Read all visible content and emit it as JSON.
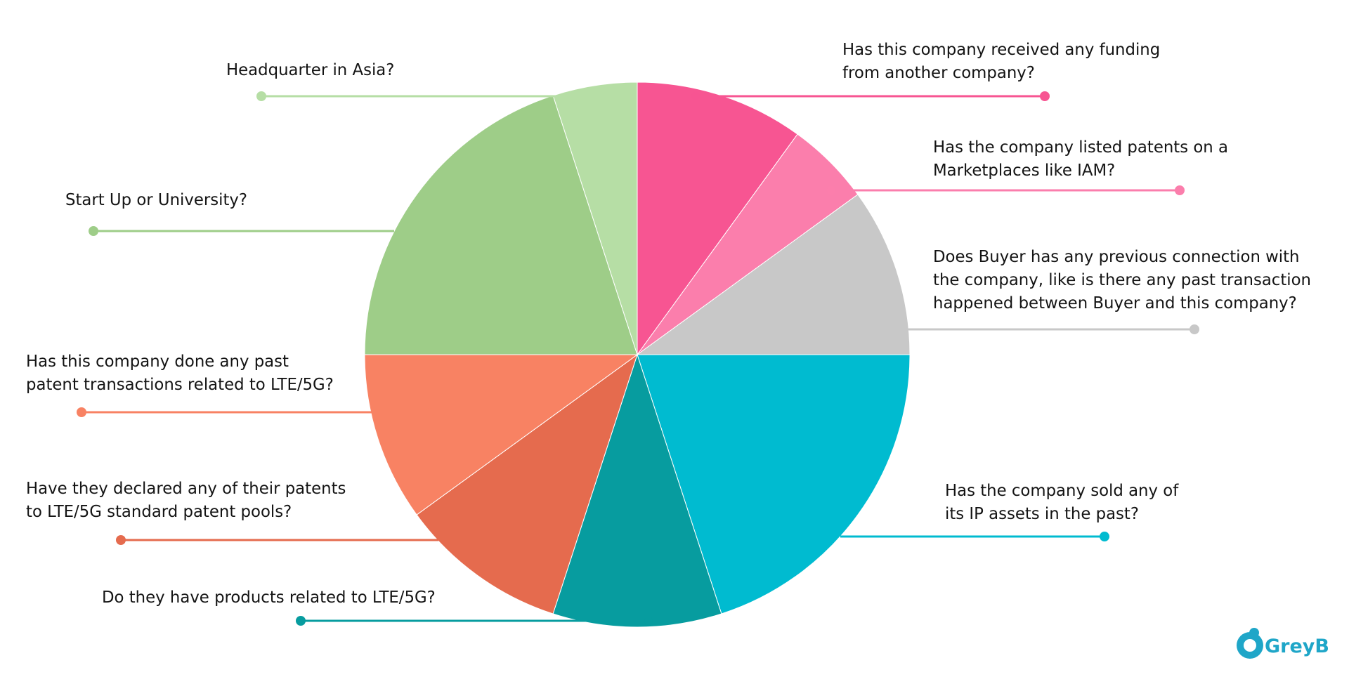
{
  "chart_data": {
    "type": "pie",
    "slices": [
      {
        "label": "Has this company received any funding from another company?",
        "label_lines": [
          "Has this company received any funding",
          "from another company?"
        ],
        "value": 10,
        "color": "#f75592",
        "side": "right"
      },
      {
        "label": "Has the company listed patents on a Marketplaces like IAM?",
        "label_lines": [
          "Has the company listed patents on a",
          "Marketplaces like IAM?"
        ],
        "value": 5,
        "color": "#fb7eac",
        "side": "right"
      },
      {
        "label": "Does Buyer has any previous connection with the company, like is there any past transaction happened between Buyer and this company?",
        "label_lines": [
          "Does Buyer has any previous connection with",
          "the company, like is there any past transaction",
          "happened between Buyer and this company?"
        ],
        "value": 10,
        "color": "#c8c8c8",
        "side": "right"
      },
      {
        "label": "Has the company sold any of its IP assets in the past?",
        "label_lines": [
          "Has the company sold any of",
          "its IP assets in the past?"
        ],
        "value": 20,
        "color": "#00bbd0",
        "side": "right"
      },
      {
        "label": "Do they have products related to LTE/5G?",
        "label_lines": [
          "Do they have products related to LTE/5G?"
        ],
        "value": 10,
        "color": "#079c9f",
        "side": "left"
      },
      {
        "label": "Have they declared any of their patents to LTE/5G standard patent pools?",
        "label_lines": [
          "Have they declared any of their patents",
          "to LTE/5G standard patent pools?"
        ],
        "value": 10,
        "color": "#e56b4e",
        "side": "left"
      },
      {
        "label": "Has this company done any past patent transactions related to LTE/5G?",
        "label_lines": [
          "Has this company done any past",
          "patent transactions related to LTE/5G?"
        ],
        "value": 10,
        "color": "#f88263",
        "side": "left"
      },
      {
        "label": "Start Up or University?",
        "label_lines": [
          "Start Up or University?"
        ],
        "value": 20,
        "color": "#9ecd88",
        "side": "left"
      },
      {
        "label": "Headquarter in Asia?",
        "label_lines": [
          "Headquarter in Asia?"
        ],
        "value": 5,
        "color": "#b6dea5",
        "side": "left"
      }
    ],
    "start_angle_deg": 0,
    "direction": "clockwise",
    "legend": "none"
  },
  "logo": {
    "text": "GreyB",
    "color": "#1fa6c8"
  }
}
